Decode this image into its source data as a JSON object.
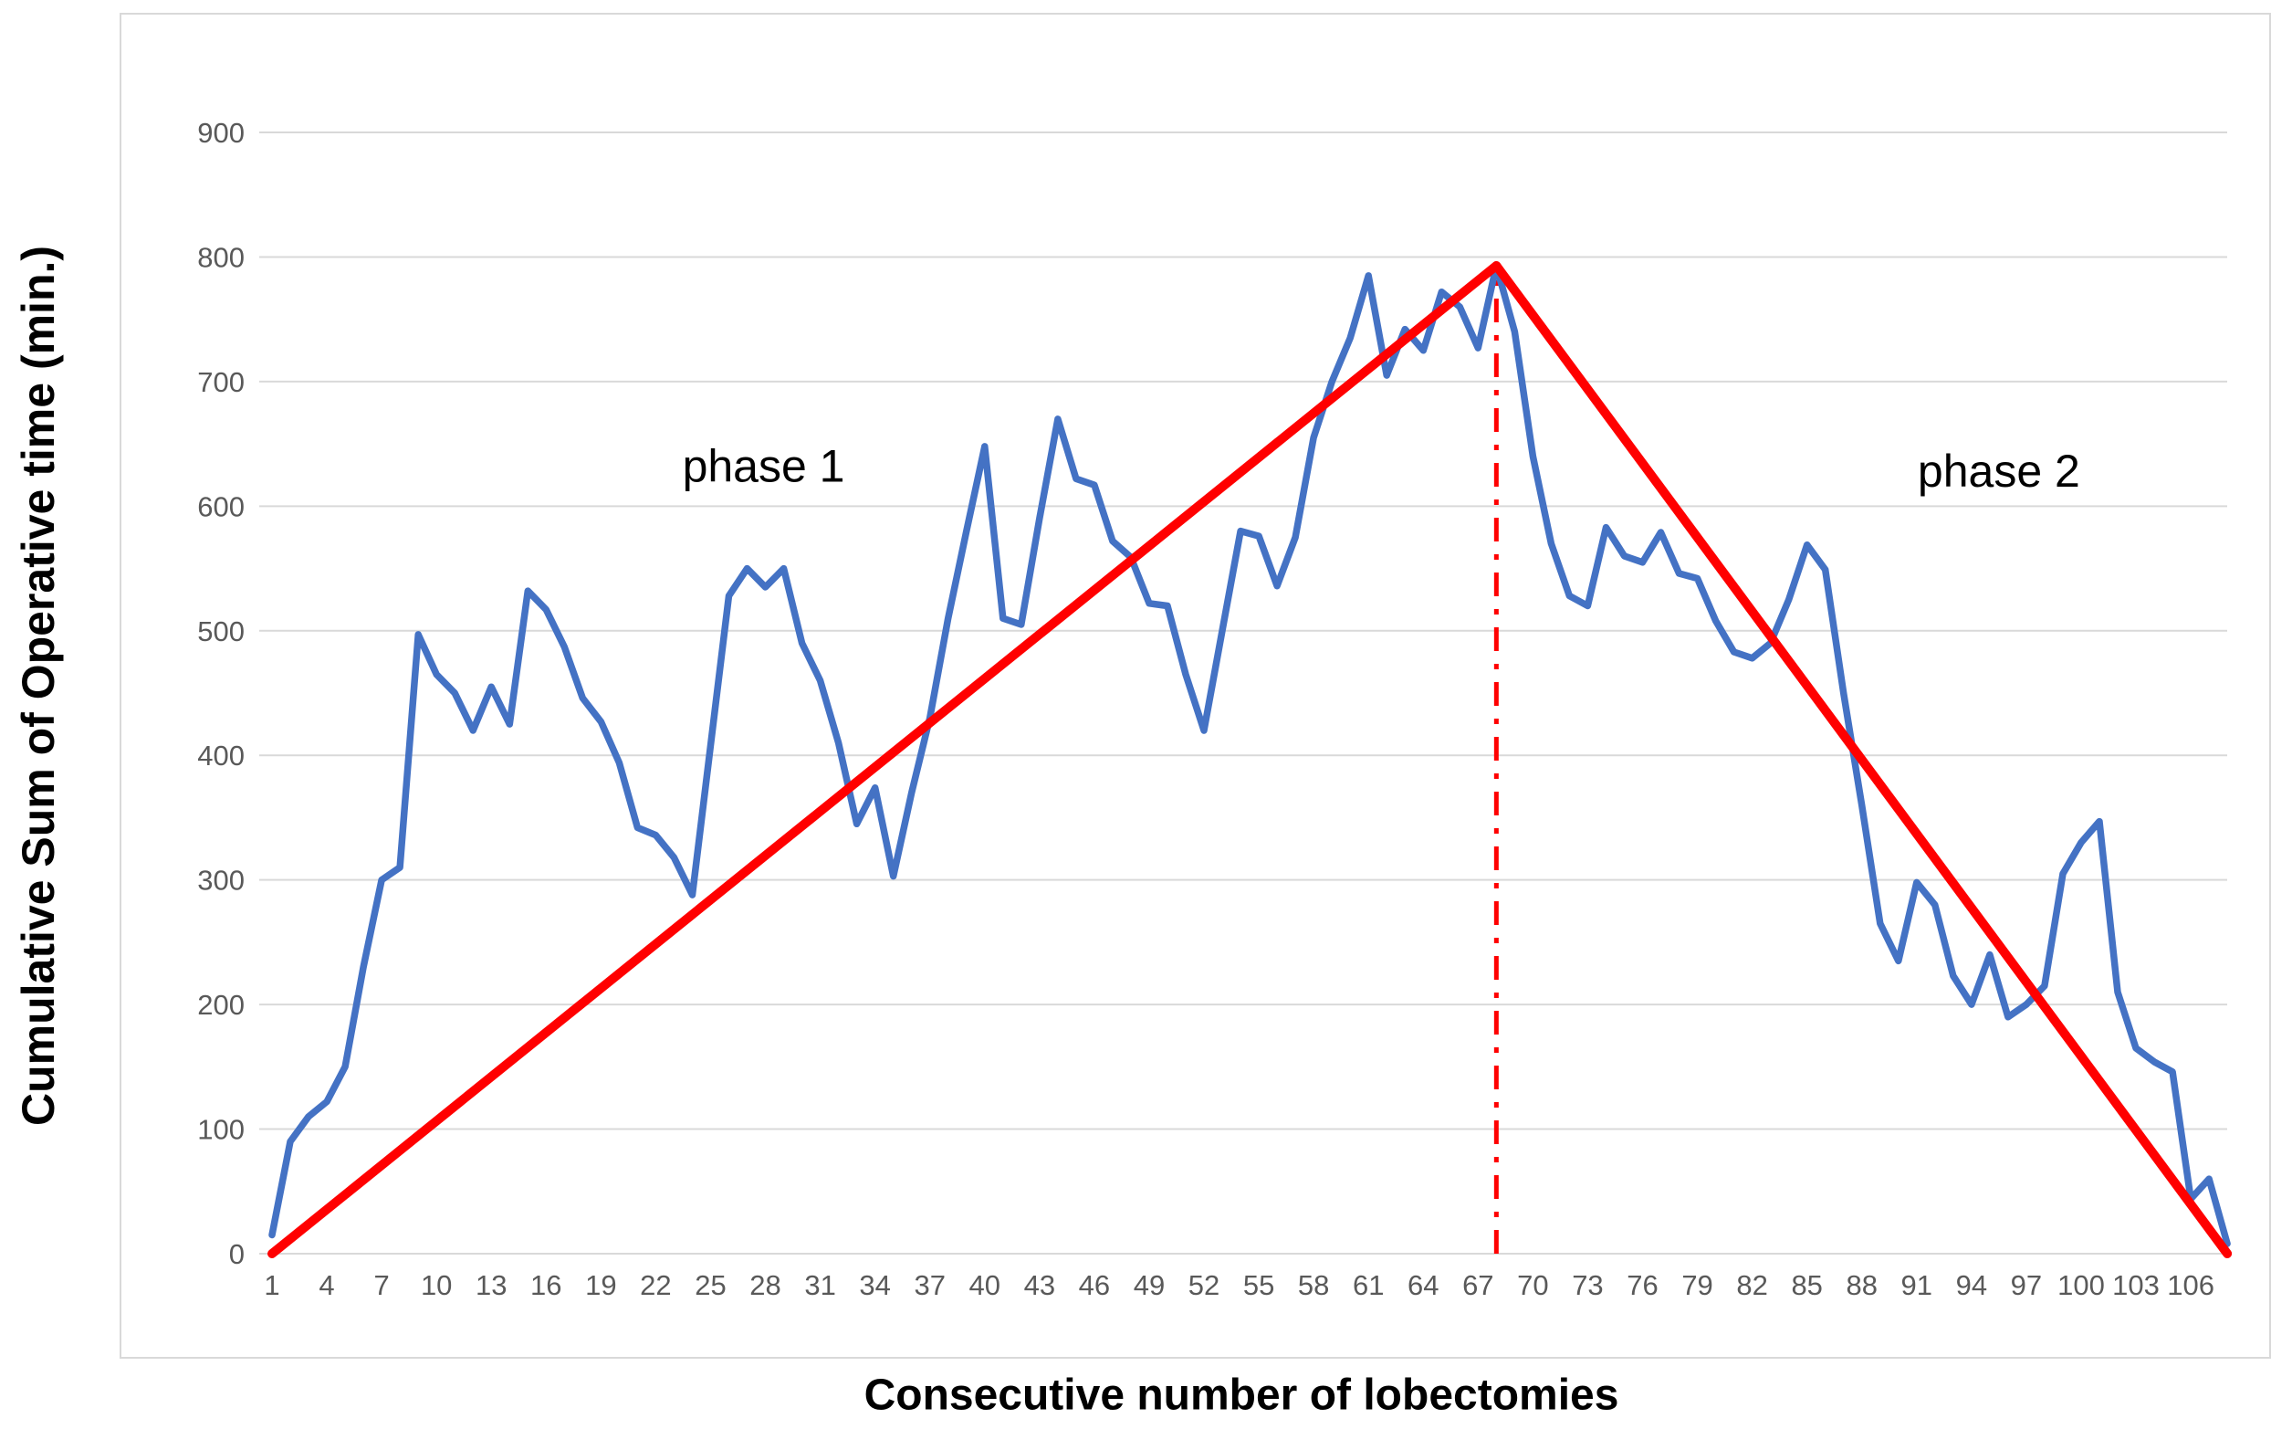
{
  "colors": {
    "cusum_line": "#4472C4",
    "trend_line": "#FF0000",
    "changepoint_line": "#FF0000",
    "gridline": "#D9D9D9",
    "card_border": "#D9D9D9",
    "tick_label": "#595959",
    "annotation_text": "#000000"
  },
  "chart_data": {
    "type": "line",
    "title": "",
    "xlabel": "Consecutive number of lobectomies",
    "ylabel": "Cumulative Sum of Operative time (min.)",
    "ylim": [
      0,
      900
    ],
    "y_ticks": [
      0,
      100,
      200,
      300,
      400,
      500,
      600,
      700,
      800,
      900
    ],
    "x_tick_labels": [
      1,
      4,
      7,
      10,
      13,
      16,
      19,
      22,
      25,
      28,
      31,
      34,
      37,
      40,
      43,
      46,
      49,
      52,
      55,
      58,
      61,
      64,
      67,
      70,
      73,
      76,
      79,
      82,
      85,
      88,
      91,
      94,
      97,
      100,
      103,
      106
    ],
    "grid": "horizontal",
    "legend": "none",
    "series": [
      {
        "name": "cusum-operative-time",
        "type": "line",
        "color": "#4472C4",
        "x_start": 1,
        "values": [
          15,
          90,
          110,
          122,
          150,
          230,
          300,
          310,
          497,
          465,
          450,
          420,
          455,
          425,
          532,
          517,
          487,
          446,
          427,
          394,
          342,
          336,
          318,
          288,
          408,
          528,
          550,
          535,
          550,
          490,
          460,
          410,
          345,
          374,
          303,
          370,
          430,
          510,
          580,
          648,
          510,
          505,
          590,
          670,
          622,
          617,
          572,
          559,
          522,
          520,
          465,
          420,
          500,
          580,
          576,
          536,
          575,
          655,
          700,
          735,
          785,
          705,
          742,
          725,
          772,
          760,
          727,
          793,
          740,
          640,
          570,
          528,
          520,
          583,
          560,
          555,
          579,
          546,
          542,
          508,
          483,
          478,
          490,
          525,
          569,
          549,
          450,
          360,
          265,
          235,
          298,
          280,
          223,
          200,
          240,
          190,
          200,
          215,
          305,
          330,
          347,
          210,
          165,
          154,
          146,
          44,
          60,
          8
        ]
      },
      {
        "name": "phase-1-trend",
        "type": "straight-line",
        "color": "#FF0000",
        "points": [
          [
            1,
            0
          ],
          [
            68,
            793
          ]
        ]
      },
      {
        "name": "phase-2-trend",
        "type": "straight-line",
        "color": "#FF0000",
        "points": [
          [
            68,
            793
          ],
          [
            108,
            0
          ]
        ]
      },
      {
        "name": "changepoint-vertical",
        "type": "dash-dot-vertical",
        "color": "#FF0000",
        "x": 68,
        "from": 0,
        "to": 793
      }
    ],
    "annotations": [
      {
        "id": "phase1",
        "text": "phase 1",
        "x": 27.9,
        "y": 632
      },
      {
        "id": "phase2",
        "text": "phase 2",
        "x": 95.5,
        "y": 628
      }
    ],
    "changepoint_index": 68,
    "peak_value": 793
  }
}
